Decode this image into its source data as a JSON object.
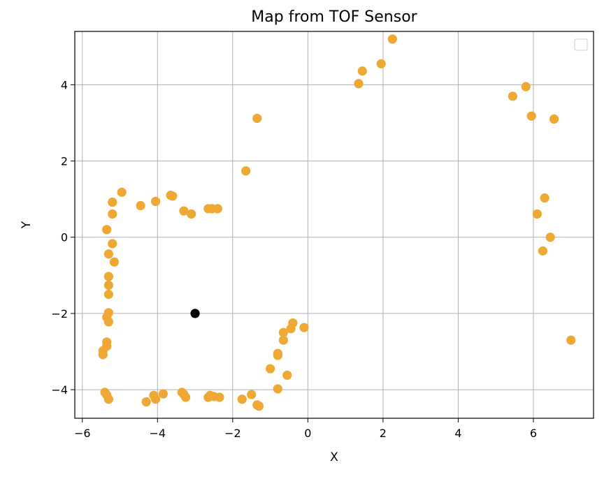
{
  "chart_data": {
    "type": "scatter",
    "title": "Map from TOF Sensor",
    "xlabel": "X",
    "ylabel": "Y",
    "xlim": [
      -6.2,
      7.6
    ],
    "ylim": [
      -4.75,
      5.4
    ],
    "xticks": [
      -6,
      -4,
      -2,
      0,
      2,
      4,
      6
    ],
    "yticks": [
      -4,
      -2,
      0,
      2,
      4
    ],
    "xtick_labels": [
      "−6",
      "−4",
      "−2",
      "0",
      "2",
      "4",
      "6"
    ],
    "ytick_labels": [
      "−4",
      "−2",
      "0",
      "2",
      "4"
    ],
    "grid": true,
    "legend": "top-right",
    "legend_entries": [],
    "colors": {
      "points": "#f0a835",
      "robot": "#000000",
      "grid": "#b0b0b0"
    },
    "series": [
      {
        "marker": "circle",
        "color": "#f0a835",
        "points": [
          [
            -4.95,
            1.18
          ],
          [
            -4.45,
            0.83
          ],
          [
            -4.05,
            0.94
          ],
          [
            -3.65,
            1.1
          ],
          [
            -3.6,
            1.08
          ],
          [
            -3.3,
            0.69
          ],
          [
            -3.1,
            0.61
          ],
          [
            -2.65,
            0.75
          ],
          [
            -2.55,
            0.75
          ],
          [
            -2.4,
            0.75
          ],
          [
            -5.2,
            0.92
          ],
          [
            -5.2,
            0.61
          ],
          [
            -5.35,
            0.2
          ],
          [
            -5.2,
            -0.17
          ],
          [
            -5.3,
            -0.44
          ],
          [
            -5.15,
            -0.65
          ],
          [
            -5.3,
            -1.03
          ],
          [
            -5.3,
            -1.26
          ],
          [
            -5.3,
            -1.5
          ],
          [
            -5.3,
            -1.98
          ],
          [
            -5.35,
            -2.1
          ],
          [
            -5.3,
            -2.22
          ],
          [
            -5.35,
            -2.75
          ],
          [
            -5.35,
            -2.86
          ],
          [
            -5.45,
            -2.98
          ],
          [
            -5.45,
            -3.08
          ],
          [
            -5.4,
            -4.07
          ],
          [
            -5.35,
            -4.14
          ],
          [
            -5.3,
            -4.25
          ],
          [
            -4.3,
            -4.32
          ],
          [
            -4.1,
            -4.15
          ],
          [
            -4.05,
            -4.25
          ],
          [
            -3.85,
            -4.11
          ],
          [
            -3.35,
            -4.07
          ],
          [
            -3.3,
            -4.12
          ],
          [
            -3.25,
            -4.2
          ],
          [
            -2.65,
            -4.2
          ],
          [
            -2.6,
            -4.15
          ],
          [
            -2.5,
            -4.18
          ],
          [
            -2.35,
            -4.2
          ],
          [
            -1.75,
            -4.25
          ],
          [
            -1.5,
            -4.13
          ],
          [
            -1.35,
            -4.4
          ],
          [
            -1.3,
            -4.43
          ],
          [
            -1.0,
            -3.45
          ],
          [
            -0.8,
            -3.98
          ],
          [
            -0.8,
            -3.05
          ],
          [
            -0.8,
            -3.1
          ],
          [
            -0.65,
            -2.7
          ],
          [
            -0.65,
            -2.5
          ],
          [
            -0.55,
            -3.62
          ],
          [
            -0.45,
            -2.4
          ],
          [
            -0.4,
            -2.25
          ],
          [
            -0.1,
            -2.37
          ],
          [
            -1.65,
            1.74
          ],
          [
            -1.35,
            3.12
          ],
          [
            1.35,
            4.03
          ],
          [
            1.45,
            4.36
          ],
          [
            1.95,
            4.55
          ],
          [
            2.25,
            5.2
          ],
          [
            5.45,
            3.7
          ],
          [
            5.8,
            3.95
          ],
          [
            5.95,
            3.18
          ],
          [
            6.55,
            3.1
          ],
          [
            6.3,
            1.03
          ],
          [
            6.1,
            0.61
          ],
          [
            6.45,
            0.0
          ],
          [
            6.25,
            -0.36
          ],
          [
            7.0,
            -2.7
          ]
        ]
      },
      {
        "marker": "circle",
        "color": "#000000",
        "points": [
          [
            -3.0,
            -2.0
          ]
        ]
      }
    ]
  }
}
